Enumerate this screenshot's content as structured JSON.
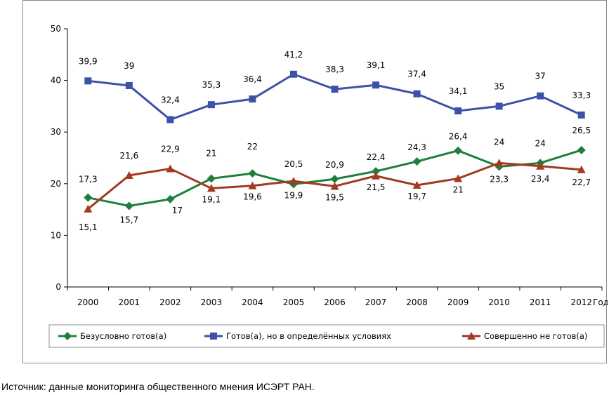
{
  "chart_data": {
    "type": "line",
    "title": "",
    "xlabel": "Год",
    "ylabel": "",
    "ylim": [
      0,
      50
    ],
    "yticks": [
      0,
      10,
      20,
      30,
      40,
      50
    ],
    "categories": [
      "2000",
      "2001",
      "2002",
      "2003",
      "2004",
      "2005",
      "2006",
      "2007",
      "2008",
      "2009",
      "2010",
      "2011",
      "2012"
    ],
    "legend_position": "bottom",
    "series": [
      {
        "name": "Безусловно готов(а)",
        "color": "#1e7f3c",
        "marker": "diamond",
        "values": [
          17.3,
          15.7,
          17,
          21,
          22,
          19.9,
          20.9,
          22.4,
          24.3,
          26.4,
          23.3,
          24,
          26.5
        ],
        "labels": [
          "17,3",
          "15,7",
          "17",
          "21",
          "22",
          "19,9",
          "20,9",
          "22,4",
          "24,3",
          "26,4",
          "23,3",
          "24",
          "26,5"
        ]
      },
      {
        "name": "Готов(а), но в определённых условиях",
        "color": "#3c52a8",
        "marker": "square",
        "values": [
          39.9,
          39,
          32.4,
          35.3,
          36.4,
          41.2,
          38.3,
          39.1,
          37.4,
          34.1,
          35,
          37,
          33.3
        ],
        "labels": [
          "39,9",
          "39",
          "32,4",
          "35,3",
          "36,4",
          "41,2",
          "38,3",
          "39,1",
          "37,4",
          "34,1",
          "35",
          "37",
          "33,3"
        ]
      },
      {
        "name": "Совершенно не готов(а)",
        "color": "#a33a22",
        "marker": "triangle",
        "values": [
          15.1,
          21.6,
          22.9,
          19.1,
          19.6,
          20.5,
          19.5,
          21.5,
          19.7,
          21,
          24,
          23.4,
          22.7
        ],
        "labels": [
          "15,1",
          "21,6",
          "22,9",
          "19,1",
          "19,6",
          "20,5",
          "19,5",
          "21,5",
          "19,7",
          "21",
          "24",
          "23,4",
          "22,7"
        ]
      }
    ]
  },
  "footer": {
    "source": "Источник: данные мониторинга общественного мнения ИСЭРТ РАН."
  }
}
